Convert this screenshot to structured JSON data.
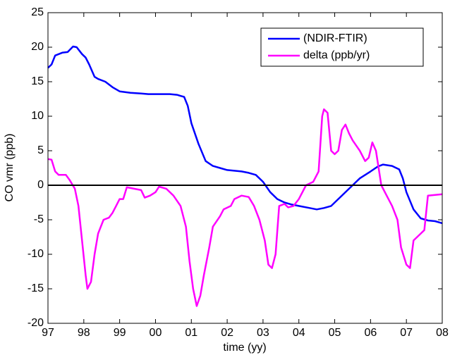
{
  "chart_data": {
    "type": "line",
    "xlabel": "time (yy)",
    "ylabel": "CO vmr (ppb)",
    "xlim": [
      97,
      108
    ],
    "ylim": [
      -20,
      25
    ],
    "xticks": [
      97,
      98,
      99,
      {
        "value": 100,
        "label": "00"
      },
      {
        "value": 101,
        "label": "01"
      },
      {
        "value": 102,
        "label": "02"
      },
      {
        "value": 103,
        "label": "03"
      },
      {
        "value": 104,
        "label": "04"
      },
      {
        "value": 105,
        "label": "05"
      },
      {
        "value": 106,
        "label": "06"
      },
      {
        "value": 107,
        "label": "07"
      },
      {
        "value": 108,
        "label": "08"
      }
    ],
    "yticks": [
      -20,
      -15,
      -10,
      -5,
      0,
      5,
      10,
      15,
      20,
      25
    ],
    "hline": 0,
    "hline_color": "#000000",
    "grid": false,
    "legend": "top-right",
    "series": [
      {
        "name": "(NDIR-FTIR)",
        "color": "#0000ff",
        "x": [
          97.0,
          97.1,
          97.2,
          97.4,
          97.55,
          97.7,
          97.8,
          97.95,
          98.05,
          98.15,
          98.3,
          98.4,
          98.6,
          98.8,
          99.0,
          99.3,
          99.6,
          99.8,
          100.0,
          100.4,
          100.6,
          100.8,
          100.9,
          101.0,
          101.2,
          101.4,
          101.6,
          101.8,
          102.0,
          102.4,
          102.6,
          102.8,
          103.0,
          103.2,
          103.4,
          103.6,
          103.8,
          104.0,
          104.3,
          104.5,
          104.7,
          104.9,
          105.1,
          105.4,
          105.7,
          106.0,
          106.2,
          106.35,
          106.6,
          106.8,
          106.9,
          107.0,
          107.2,
          107.4,
          107.6,
          107.8,
          108.0
        ],
        "values": [
          17,
          17.5,
          18.8,
          19.2,
          19.3,
          20.1,
          20,
          19,
          18.5,
          17.5,
          15.7,
          15.4,
          15,
          14.2,
          13.6,
          13.4,
          13.3,
          13.2,
          13.2,
          13.2,
          13.1,
          12.8,
          11.5,
          9,
          6,
          3.5,
          2.8,
          2.5,
          2.2,
          2,
          1.8,
          1.5,
          0.5,
          -1,
          -2,
          -2.5,
          -2.8,
          -3,
          -3.3,
          -3.5,
          -3.3,
          -3,
          -2,
          -0.5,
          1,
          2,
          2.7,
          3,
          2.8,
          2.3,
          1,
          -1,
          -3.5,
          -4.8,
          -5.1,
          -5.2,
          -5.5
        ]
      },
      {
        "name": "delta (ppb/yr)",
        "color": "#ff00ff",
        "x": [
          97.0,
          97.1,
          97.2,
          97.3,
          97.5,
          97.6,
          97.75,
          97.85,
          97.95,
          98.05,
          98.1,
          98.2,
          98.3,
          98.4,
          98.55,
          98.7,
          98.8,
          98.9,
          99.0,
          99.1,
          99.2,
          99.4,
          99.6,
          99.7,
          99.85,
          100.0,
          100.1,
          100.3,
          100.5,
          100.7,
          100.85,
          100.95,
          101.05,
          101.15,
          101.25,
          101.35,
          101.5,
          101.6,
          101.8,
          101.9,
          102.1,
          102.2,
          102.4,
          102.6,
          102.75,
          102.9,
          103.05,
          103.15,
          103.25,
          103.35,
          103.45,
          103.6,
          103.7,
          103.85,
          104.0,
          104.2,
          104.4,
          104.55,
          104.65,
          104.7,
          104.8,
          104.9,
          105.0,
          105.1,
          105.2,
          105.3,
          105.4,
          105.5,
          105.7,
          105.85,
          105.95,
          106.05,
          106.15,
          106.3,
          106.45,
          106.6,
          106.75,
          106.85,
          107.0,
          107.1,
          107.2,
          107.4,
          107.5,
          107.6,
          107.8,
          108.0
        ],
        "values": [
          3.8,
          3.7,
          2,
          1.5,
          1.5,
          0.8,
          -0.5,
          -3,
          -8,
          -13,
          -15,
          -14,
          -10,
          -7,
          -5,
          -4.7,
          -4,
          -3,
          -2,
          -2,
          -0.3,
          -0.5,
          -0.7,
          -1.8,
          -1.5,
          -1,
          -0.2,
          -0.5,
          -1.5,
          -3,
          -6,
          -11,
          -15,
          -17.5,
          -16,
          -13,
          -9,
          -6,
          -4.5,
          -3.5,
          -3,
          -2,
          -1.5,
          -1.7,
          -3,
          -5,
          -8,
          -11.5,
          -12,
          -10,
          -3,
          -2.7,
          -3.2,
          -3,
          -2,
          0,
          0.5,
          2,
          10,
          11,
          10.5,
          5,
          4.5,
          5,
          8,
          8.8,
          7.5,
          6.5,
          5,
          3.5,
          4,
          6.2,
          5,
          0,
          -1.5,
          -3,
          -5,
          -9,
          -11.5,
          -12,
          -8,
          -7,
          -6.5,
          -1.5,
          -1.4,
          -1.3
        ]
      }
    ]
  }
}
